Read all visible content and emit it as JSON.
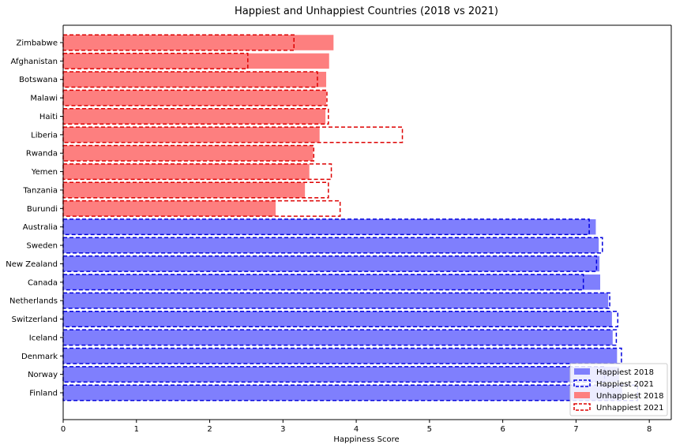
{
  "chart_data": {
    "type": "bar",
    "orientation": "horizontal",
    "title": "Happiest and Unhappiest Countries (2018 vs 2021)",
    "xlabel": "Happiness Score",
    "ylabel": "",
    "xlim": [
      0,
      8.3
    ],
    "xticks": [
      0,
      1,
      2,
      3,
      4,
      5,
      6,
      7,
      8
    ],
    "grid": false,
    "legend_position": "bottom-right",
    "colors": {
      "happiest_fill": "#7f7ffd",
      "happiest_outline": "#0000dd",
      "unhappiest_fill": "#fd7f7f",
      "unhappiest_outline": "#dd0000"
    },
    "categories": [
      "Finland",
      "Norway",
      "Denmark",
      "Iceland",
      "Switzerland",
      "Netherlands",
      "Canada",
      "New Zealand",
      "Sweden",
      "Australia",
      "Burundi",
      "Tanzania",
      "Yemen",
      "Rwanda",
      "Liberia",
      "Haiti",
      "Malawi",
      "Botswana",
      "Afghanistan",
      "Zimbabwe"
    ],
    "groups": [
      "happiest",
      "happiest",
      "happiest",
      "happiest",
      "happiest",
      "happiest",
      "happiest",
      "happiest",
      "happiest",
      "happiest",
      "unhappiest",
      "unhappiest",
      "unhappiest",
      "unhappiest",
      "unhappiest",
      "unhappiest",
      "unhappiest",
      "unhappiest",
      "unhappiest",
      "unhappiest"
    ],
    "series": [
      {
        "name": "Happiest 2018",
        "style": "filled",
        "group": "happiest",
        "values": [
          7.63,
          7.59,
          7.56,
          7.5,
          7.49,
          7.44,
          7.33,
          7.32,
          7.31,
          7.27,
          null,
          null,
          null,
          null,
          null,
          null,
          null,
          null,
          null,
          null
        ]
      },
      {
        "name": "Happiest 2021",
        "style": "dashed",
        "group": "happiest",
        "values": [
          7.84,
          7.39,
          7.62,
          7.55,
          7.57,
          7.46,
          7.1,
          7.28,
          7.36,
          7.18,
          null,
          null,
          null,
          null,
          null,
          null,
          null,
          null,
          null,
          null
        ]
      },
      {
        "name": "Unhappiest 2018",
        "style": "filled",
        "group": "unhappiest",
        "values": [
          null,
          null,
          null,
          null,
          null,
          null,
          null,
          null,
          null,
          null,
          2.9,
          3.3,
          3.36,
          3.41,
          3.5,
          3.58,
          3.59,
          3.59,
          3.63,
          3.69
        ]
      },
      {
        "name": "Unhappiest 2021",
        "style": "dashed",
        "group": "unhappiest",
        "values": [
          null,
          null,
          null,
          null,
          null,
          null,
          null,
          null,
          null,
          null,
          3.78,
          3.62,
          3.66,
          3.42,
          4.63,
          3.62,
          3.6,
          3.47,
          2.52,
          3.15
        ]
      }
    ]
  }
}
